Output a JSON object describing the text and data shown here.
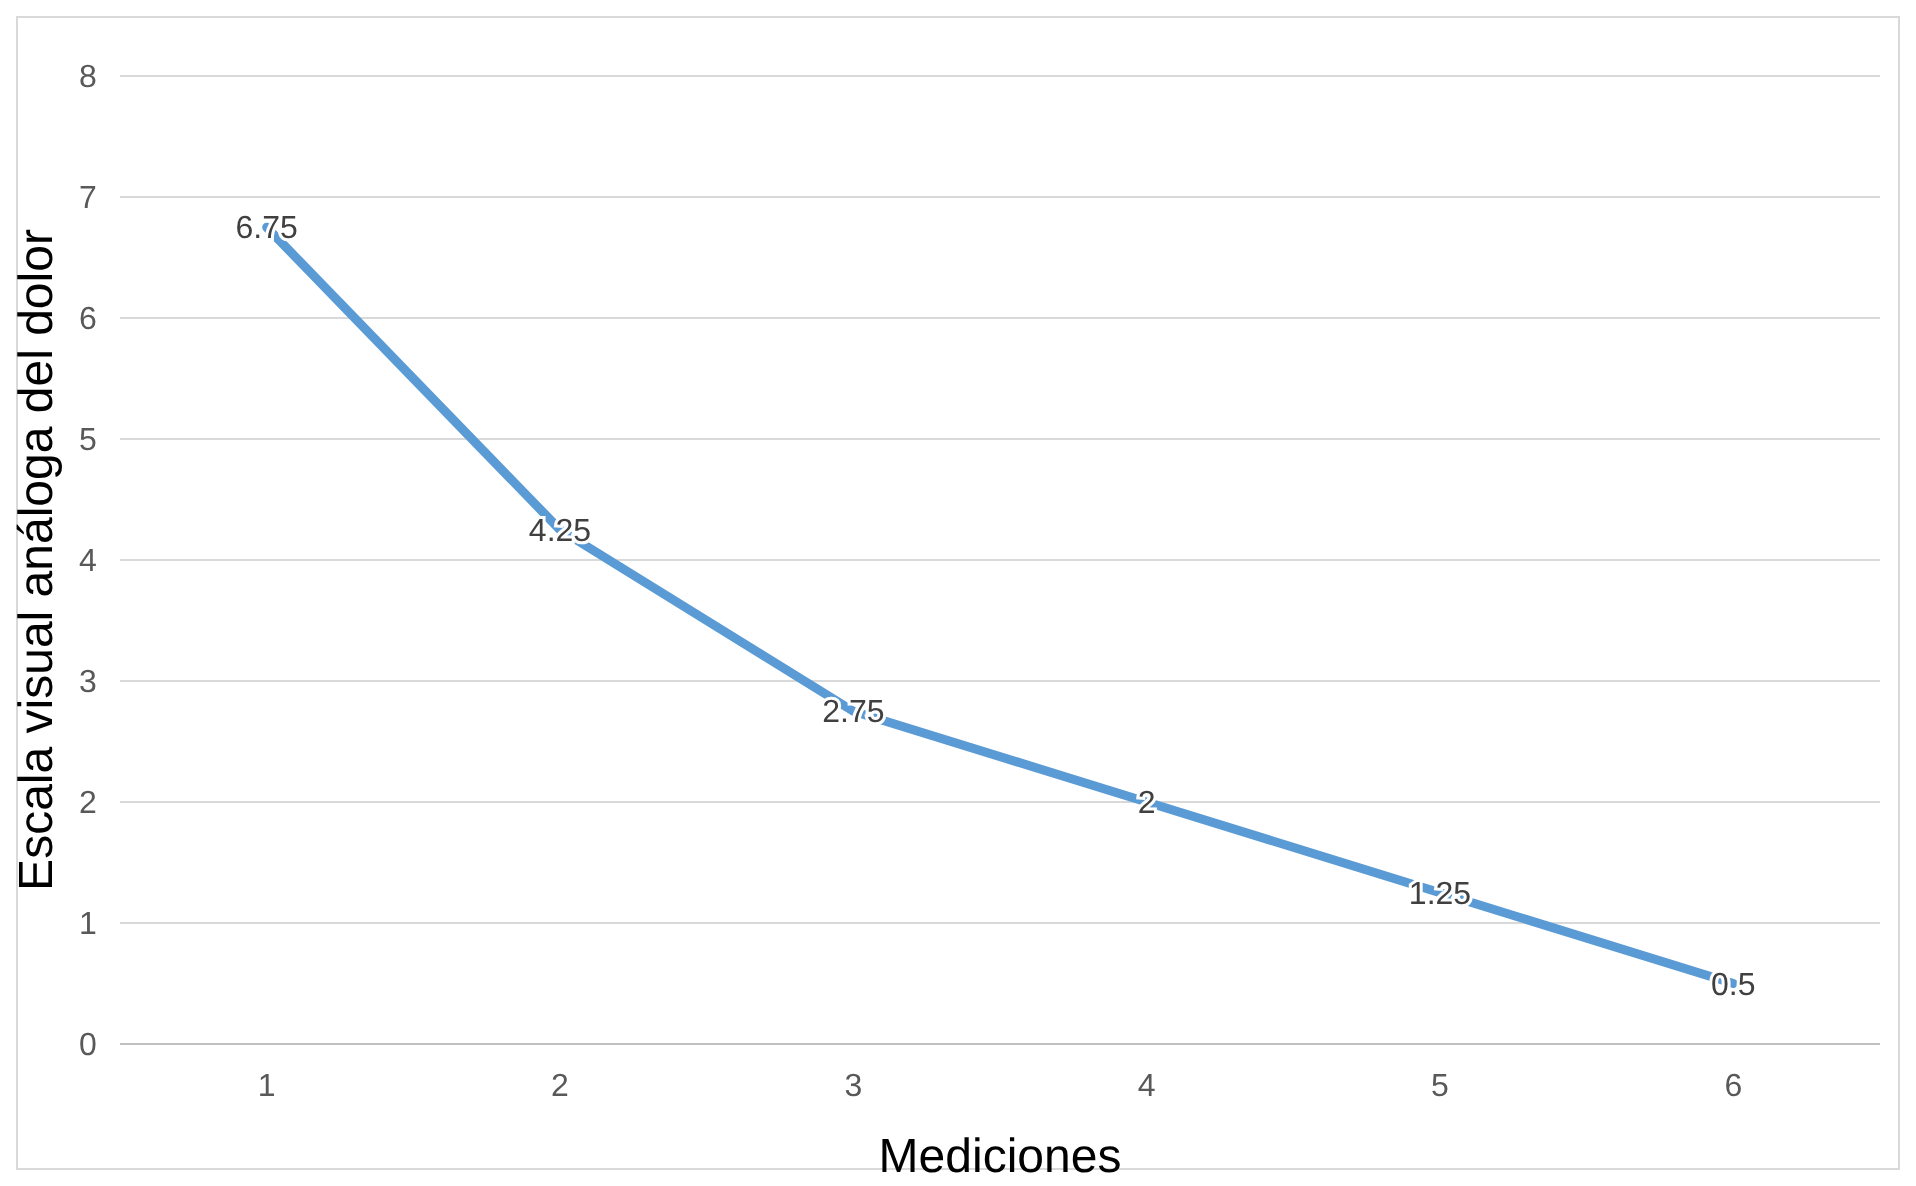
{
  "chart_data": {
    "type": "line",
    "xlabel": "Mediciones",
    "ylabel": "Escala visual análoga del dolor",
    "categories": [
      "1",
      "2",
      "3",
      "4",
      "5",
      "6"
    ],
    "series": [
      {
        "color": "#5b9bd5",
        "values": [
          6.75,
          4.25,
          2.75,
          2,
          1.25,
          0.5
        ]
      }
    ],
    "ylim": [
      0,
      8
    ],
    "yticks": [
      0,
      1,
      2,
      3,
      4,
      5,
      6,
      7,
      8
    ],
    "grid": "y",
    "data_labels": true,
    "marker": "none",
    "line_style": "solid"
  }
}
